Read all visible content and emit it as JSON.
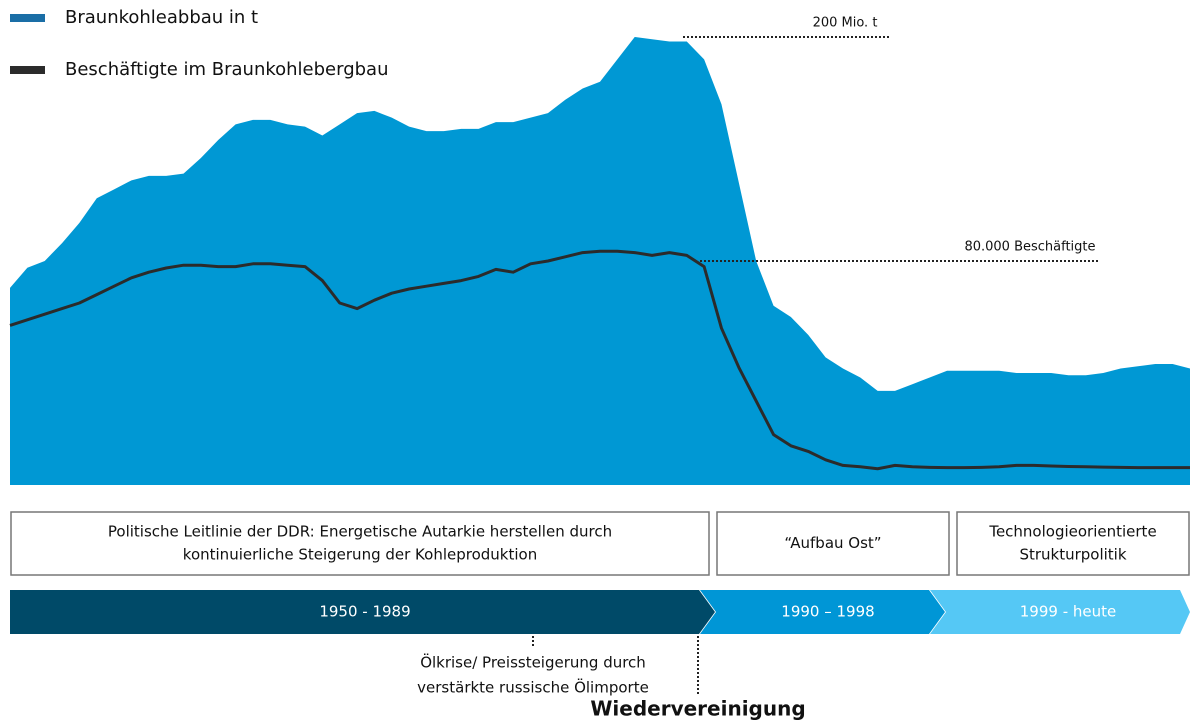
{
  "chart_data": {
    "type": "area-line",
    "x": [
      1950,
      1951,
      1952,
      1953,
      1954,
      1955,
      1956,
      1957,
      1958,
      1959,
      1960,
      1961,
      1962,
      1963,
      1964,
      1965,
      1966,
      1967,
      1968,
      1969,
      1970,
      1971,
      1972,
      1973,
      1974,
      1975,
      1976,
      1977,
      1978,
      1979,
      1980,
      1981,
      1982,
      1983,
      1984,
      1985,
      1986,
      1987,
      1988,
      1989,
      1990,
      1991,
      1992,
      1993,
      1994,
      1995,
      1996,
      1997,
      1998,
      1999,
      2000,
      2001,
      2002,
      2003,
      2004,
      2005,
      2006,
      2007,
      2008,
      2009,
      2010,
      2011,
      2012,
      2013,
      2014,
      2015,
      2016,
      2017,
      2018
    ],
    "xlim": [
      1950,
      2018
    ],
    "ylim": [
      0,
      200
    ],
    "y2lim": [
      0,
      160000
    ],
    "series": [
      {
        "name": "Braunkohleabbau in t",
        "color": "#0098d4",
        "legend_color": "#1a6ea6",
        "values": [
          88,
          97,
          100,
          108,
          117,
          128,
          132,
          136,
          138,
          138,
          139,
          146,
          154,
          161,
          163,
          163,
          161,
          160,
          156,
          161,
          166,
          167,
          164,
          160,
          158,
          158,
          159,
          159,
          162,
          162,
          164,
          166,
          172,
          177,
          180,
          190,
          200,
          199,
          198,
          198,
          190,
          170,
          135,
          100,
          80,
          75,
          67,
          57,
          52,
          48,
          42,
          42,
          45,
          48,
          51,
          51,
          51,
          51,
          50,
          50,
          50,
          49,
          49,
          50,
          52,
          53,
          54,
          54,
          52
        ]
      },
      {
        "name": "Beschäftigte im Braunkohlebergbau",
        "color": "#2b2b2b",
        "axis": "y2",
        "values": [
          57000,
          59000,
          61000,
          63000,
          65000,
          68000,
          71000,
          74000,
          76000,
          77500,
          78500,
          78500,
          78000,
          78000,
          79000,
          79000,
          78500,
          78000,
          73000,
          65000,
          63000,
          66000,
          68500,
          70000,
          71000,
          72000,
          73000,
          74500,
          77000,
          76000,
          79000,
          80000,
          81500,
          83000,
          83500,
          83500,
          83000,
          82000,
          83000,
          82000,
          78000,
          56000,
          42000,
          30000,
          18000,
          14000,
          12000,
          9000,
          7000,
          6500,
          5800,
          7000,
          6500,
          6300,
          6200,
          6200,
          6300,
          6500,
          7000,
          7000,
          6800,
          6600,
          6500,
          6400,
          6300,
          6200,
          6200,
          6200,
          6200
        ]
      }
    ],
    "annotations": [
      {
        "text": "200 Mio. t",
        "value": 200
      },
      {
        "text": "80.000 Beschäftigte",
        "value": 80000,
        "axis": "y2"
      }
    ]
  },
  "timeline": {
    "phases": [
      {
        "description": [
          "Politische Leitlinie der DDR: Energetische Autarkie herstellen durch",
          "kontinuierliche Steigerung der Kohleproduktion"
        ],
        "period": "1950 - 1989",
        "color": "#004a68"
      },
      {
        "description": [
          "“Aufbau Ost”"
        ],
        "period": "1990 – 1998",
        "color": "#0096d6"
      },
      {
        "description": [
          "Technologieorientierte",
          "Strukturpolitik"
        ],
        "period": "1999 - heute",
        "color": "#55c8f5"
      }
    ],
    "events": [
      {
        "lines": [
          "Ölkrise/ Preissteigerung durch",
          "verstärkte russische Ölimporte"
        ]
      },
      {
        "lines": [
          "Wiedervereinigung"
        ]
      }
    ]
  }
}
